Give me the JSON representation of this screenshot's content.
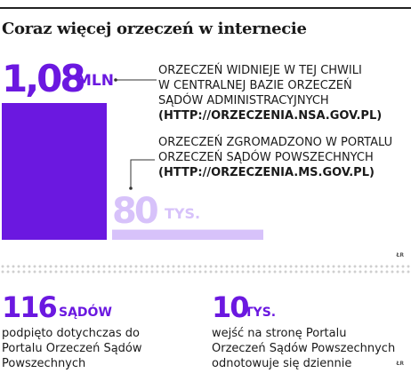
{
  "title": "Coraz więcej orzeczeń w internecie",
  "chart_data": {
    "type": "bar",
    "categories": [
      "Centralna Baza Orzeczeń Sądów Administracyjnych",
      "Portal Orzeczeń Sądów Powszechnych"
    ],
    "values": [
      1080000,
      80000
    ],
    "colors": [
      "#6b18e0",
      "#d7c2fa"
    ],
    "bars": [
      {
        "value_label": "1,08",
        "unit": "MLN",
        "desc_lines": [
          "Orzeczeń widnieje w tej chwili",
          "w centralnej bazie orzeczeń",
          "sądów administracyjnych"
        ],
        "url": "(HTTP://ORZECZENIA.NSA.GOV.PL)"
      },
      {
        "value_label": "80",
        "unit": "TYS.",
        "desc_lines": [
          "Orzeczeń zgromadzono w portalu",
          "orzeczeń sądów powszechnych"
        ],
        "url": "(HTTP://ORZECZENIA.MS.GOV.PL)"
      }
    ]
  },
  "stats": [
    {
      "number": "116",
      "unit": "SĄDÓW",
      "desc_lines": [
        "podpięto dotychczas do",
        "Portalu Orzeczeń Sądów",
        "Powszechnych"
      ]
    },
    {
      "number": "10",
      "unit": "TYS.",
      "desc_lines": [
        "wejść na stronę Portalu",
        "Orzeczeń Sądów Powszechnych",
        "odnotowuje się dziennie"
      ]
    }
  ],
  "credit": "ŁR",
  "accent_color": "#6b18e0",
  "light_color": "#d7c2fa"
}
